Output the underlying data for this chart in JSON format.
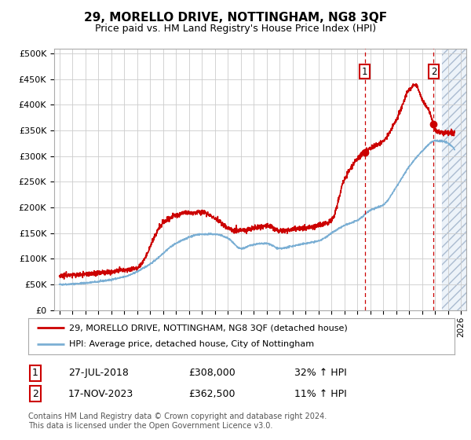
{
  "title": "29, MORELLO DRIVE, NOTTINGHAM, NG8 3QF",
  "subtitle": "Price paid vs. HM Land Registry's House Price Index (HPI)",
  "ylim": [
    0,
    510000
  ],
  "yticks": [
    0,
    50000,
    100000,
    150000,
    200000,
    250000,
    300000,
    350000,
    400000,
    450000,
    500000
  ],
  "ytick_labels": [
    "£0",
    "£50K",
    "£100K",
    "£150K",
    "£200K",
    "£250K",
    "£300K",
    "£350K",
    "£400K",
    "£450K",
    "£500K"
  ],
  "hpi_color": "#7bafd4",
  "price_color": "#cc0000",
  "sale1_year": 2018.56,
  "sale2_year": 2023.88,
  "marker1_price": 308000,
  "marker2_price": 362500,
  "sale1_label": "27-JUL-2018",
  "sale1_amount": "£308,000",
  "sale1_hpi": "32% ↑ HPI",
  "sale2_label": "17-NOV-2023",
  "sale2_amount": "£362,500",
  "sale2_hpi": "11% ↑ HPI",
  "legend_line1": "29, MORELLO DRIVE, NOTTINGHAM, NG8 3QF (detached house)",
  "legend_line2": "HPI: Average price, detached house, City of Nottingham",
  "footer": "Contains HM Land Registry data © Crown copyright and database right 2024.\nThis data is licensed under the Open Government Licence v3.0.",
  "grid_color": "#cccccc",
  "future_shade_start": 2024.5,
  "xlim": [
    1994.6,
    2026.4
  ],
  "hpi_x": [
    1995,
    1997,
    2000,
    2002,
    2004,
    2006,
    2007,
    2008,
    2009,
    2010,
    2011,
    2012,
    2013,
    2014,
    2015,
    2016,
    2017,
    2018,
    2019,
    2020,
    2021,
    2022,
    2023,
    2024,
    2025
  ],
  "hpi_y": [
    50000,
    53000,
    65000,
    90000,
    130000,
    148000,
    148000,
    140000,
    120000,
    128000,
    130000,
    120000,
    125000,
    130000,
    135000,
    150000,
    165000,
    175000,
    195000,
    205000,
    240000,
    280000,
    310000,
    330000,
    325000
  ],
  "price_x": [
    1995,
    1997,
    1999,
    2001,
    2003,
    2004,
    2005,
    2006,
    2007,
    2008,
    2009,
    2010,
    2011,
    2012,
    2013,
    2014,
    2015,
    2016,
    2017,
    2018.0,
    2018.56,
    2019,
    2020,
    2021,
    2022,
    2022.5,
    2023,
    2023.5,
    2023.88,
    2024,
    2025
  ],
  "price_y": [
    68000,
    70000,
    75000,
    83000,
    170000,
    185000,
    190000,
    190000,
    180000,
    160000,
    155000,
    160000,
    165000,
    155000,
    158000,
    160000,
    165000,
    175000,
    255000,
    295000,
    308000,
    315000,
    330000,
    370000,
    430000,
    440000,
    410000,
    390000,
    362500,
    350000,
    345000
  ]
}
